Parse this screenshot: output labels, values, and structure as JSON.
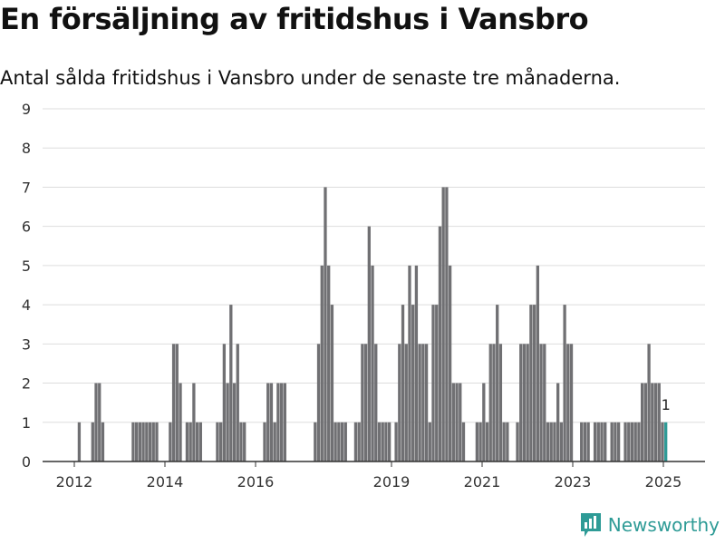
{
  "title": "En försäljning av fritidshus i Vansbro",
  "subtitle": "Antal sålda fritidshus i Vansbro under de senaste tre månaderna.",
  "brand": {
    "name": "Newsworthy",
    "icon": "newsworthy-logo-icon",
    "color": "#2e9b96"
  },
  "chart_data": {
    "type": "bar",
    "title": "En försäljning av fritidshus i Vansbro",
    "subtitle": "Antal sålda fritidshus i Vansbro under de senaste tre månaderna.",
    "xlabel": "",
    "ylabel": "",
    "ylim": [
      0,
      9
    ],
    "yticks": [
      0,
      1,
      2,
      3,
      4,
      5,
      6,
      7,
      8,
      9
    ],
    "xticks": [
      "2012",
      "2014",
      "2016",
      "2019",
      "2021",
      "2023",
      "2025"
    ],
    "grid": true,
    "colors": {
      "bar": "#707073",
      "highlight": "#2e9b96",
      "grid": "#dddddd",
      "axis": "#333333"
    },
    "highlight_label": "1",
    "series": [
      {
        "values": [
          0,
          0,
          0,
          0,
          0,
          0,
          0,
          0,
          1,
          0,
          0,
          0,
          1,
          2,
          2,
          1,
          0,
          0,
          0,
          0,
          0,
          0,
          0,
          0,
          1,
          1,
          1,
          1,
          1,
          1,
          1,
          1,
          0,
          0,
          0,
          1,
          3,
          3,
          2,
          0,
          1,
          1,
          2,
          1,
          1,
          0,
          0,
          0,
          0,
          1,
          1,
          3,
          2,
          4,
          2,
          3,
          1,
          1,
          0,
          0,
          0,
          0,
          0,
          1,
          2,
          2,
          1,
          2,
          2,
          2,
          0,
          0,
          0,
          0,
          0,
          0,
          0,
          0,
          1,
          3,
          5,
          7,
          5,
          4,
          1,
          1,
          1,
          1,
          0,
          0,
          1,
          1,
          3,
          3,
          6,
          5,
          3,
          1,
          1,
          1,
          1,
          0,
          1,
          3,
          4,
          3,
          5,
          4,
          5,
          3,
          3,
          3,
          1,
          4,
          4,
          6,
          7,
          7,
          5,
          2,
          2,
          2,
          1,
          0,
          0,
          0,
          1,
          1,
          2,
          1,
          3,
          3,
          4,
          3,
          1,
          1,
          0,
          0,
          1,
          3,
          3,
          3,
          4,
          4,
          5,
          3,
          3,
          1,
          1,
          1,
          2,
          1,
          4,
          3,
          3,
          0,
          0,
          1,
          1,
          1,
          0,
          1,
          1,
          1,
          1,
          0,
          1,
          1,
          1,
          0,
          1,
          1,
          1,
          1,
          1,
          2,
          2,
          3,
          2,
          2,
          2,
          1,
          1
        ]
      }
    ]
  }
}
